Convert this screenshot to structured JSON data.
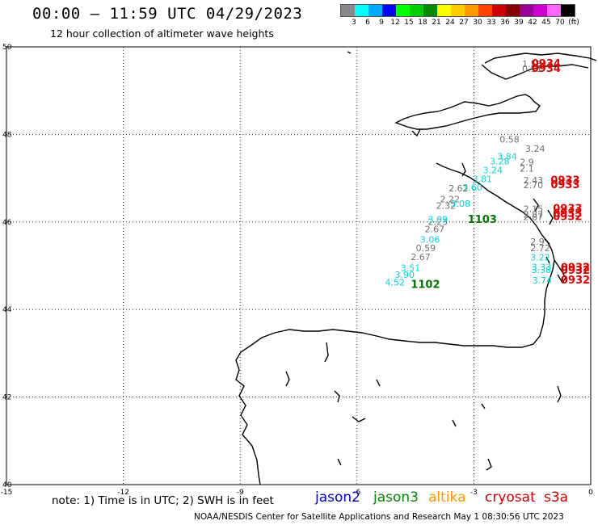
{
  "title": "00:00 – 11:59 UTC 04/29/2023",
  "subtitle": "12 hour collection of altimeter wave heights",
  "legend": {
    "unit": "(ft)",
    "colors": [
      "#888888",
      "#00ffff",
      "#00aaff",
      "#0000ff",
      "#00ff00",
      "#00cc00",
      "#008800",
      "#ffff00",
      "#ffcc00",
      "#ff9900",
      "#ff4400",
      "#cc0000",
      "#880000",
      "#990099",
      "#cc00cc",
      "#ff66ff",
      "#000000"
    ],
    "ticks": [
      "3",
      "6",
      "9",
      "12",
      "15",
      "18",
      "21",
      "24",
      "27",
      "30",
      "33",
      "36",
      "39",
      "42",
      "45",
      "70",
      "(ft)"
    ]
  },
  "axes": {
    "lon_ticks": [
      "-15",
      "-12",
      "-9",
      "-6",
      "-3",
      "0"
    ],
    "lat_ticks": [
      "50",
      "48",
      "46",
      "44",
      "42",
      "40"
    ]
  },
  "colors": {
    "gray": "#707070",
    "cyan": "#00d8d8",
    "red": "#dd0000",
    "green": "#007700"
  },
  "track_labels": [
    {
      "lon": -1.76,
      "lat": 49.54,
      "text": "1.55",
      "color": "gray"
    },
    {
      "lon": -1.76,
      "lat": 49.43,
      "text": "0.51",
      "color": "gray"
    },
    {
      "lon": -2.34,
      "lat": 47.81,
      "text": "0.58",
      "color": "gray"
    },
    {
      "lon": -1.68,
      "lat": 47.6,
      "text": "3.24",
      "color": "gray"
    },
    {
      "lon": -1.82,
      "lat": 47.3,
      "text": "2.9",
      "color": "gray"
    },
    {
      "lon": -1.82,
      "lat": 47.15,
      "text": "2.1",
      "color": "gray"
    },
    {
      "lon": -1.73,
      "lat": 46.88,
      "text": "2.43",
      "color": "gray"
    },
    {
      "lon": -1.73,
      "lat": 46.77,
      "text": "2.70",
      "color": "gray"
    },
    {
      "lon": -3.65,
      "lat": 46.7,
      "text": "2.62",
      "color": "gray"
    },
    {
      "lon": -3.87,
      "lat": 46.45,
      "text": "2.22",
      "color": "gray"
    },
    {
      "lon": -3.97,
      "lat": 46.3,
      "text": "2.32",
      "color": "gray"
    },
    {
      "lon": -4.18,
      "lat": 45.93,
      "text": "2.23",
      "color": "gray"
    },
    {
      "lon": -4.26,
      "lat": 45.77,
      "text": "2.67",
      "color": "gray"
    },
    {
      "lon": -4.49,
      "lat": 45.33,
      "text": "0.59",
      "color": "gray"
    },
    {
      "lon": -4.62,
      "lat": 45.13,
      "text": "2.67",
      "color": "gray"
    },
    {
      "lon": -1.73,
      "lat": 46.23,
      "text": "2.15",
      "color": "gray"
    },
    {
      "lon": -1.73,
      "lat": 46.1,
      "text": "2.87",
      "color": "gray"
    },
    {
      "lon": -1.73,
      "lat": 46.04,
      "text": "2.87",
      "color": "gray"
    },
    {
      "lon": -1.55,
      "lat": 45.48,
      "text": "2.9",
      "color": "gray"
    },
    {
      "lon": -1.55,
      "lat": 45.33,
      "text": "2.72",
      "color": "gray"
    },
    {
      "lon": -2.4,
      "lat": 47.43,
      "text": "3.84",
      "color": "cyan"
    },
    {
      "lon": -2.59,
      "lat": 47.32,
      "text": "3.28",
      "color": "cyan"
    },
    {
      "lon": -2.77,
      "lat": 47.11,
      "text": "3.24",
      "color": "cyan"
    },
    {
      "lon": -3.04,
      "lat": 46.91,
      "text": "3.81",
      "color": "cyan"
    },
    {
      "lon": -3.29,
      "lat": 46.72,
      "text": "3.60",
      "color": "cyan"
    },
    {
      "lon": -3.6,
      "lat": 46.35,
      "text": "3.08",
      "color": "cyan"
    },
    {
      "lon": -4.18,
      "lat": 45.99,
      "text": "3.09",
      "color": "cyan"
    },
    {
      "lon": -4.38,
      "lat": 45.53,
      "text": "3.06",
      "color": "cyan"
    },
    {
      "lon": -4.88,
      "lat": 44.88,
      "text": "3.51",
      "color": "cyan"
    },
    {
      "lon": -5.03,
      "lat": 44.72,
      "text": "3.90",
      "color": "cyan"
    },
    {
      "lon": -5.28,
      "lat": 44.55,
      "text": "4.52",
      "color": "cyan"
    },
    {
      "lon": -1.55,
      "lat": 45.12,
      "text": "3.22",
      "color": "cyan"
    },
    {
      "lon": -1.52,
      "lat": 44.9,
      "text": "3.33",
      "color": "cyan"
    },
    {
      "lon": -1.52,
      "lat": 44.83,
      "text": "3.38",
      "color": "cyan"
    },
    {
      "lon": -1.5,
      "lat": 44.59,
      "text": "3.74",
      "color": "cyan"
    },
    {
      "lon": -1.52,
      "lat": 49.54,
      "text": "0934",
      "color": "red"
    },
    {
      "lon": -1.52,
      "lat": 49.43,
      "text": "0934",
      "color": "red"
    },
    {
      "lon": -1.03,
      "lat": 46.87,
      "text": "0933",
      "color": "red"
    },
    {
      "lon": -1.03,
      "lat": 46.77,
      "text": "0933",
      "color": "red"
    },
    {
      "lon": -0.97,
      "lat": 46.23,
      "text": "0933",
      "color": "red"
    },
    {
      "lon": -0.97,
      "lat": 46.12,
      "text": "0933",
      "color": "red"
    },
    {
      "lon": -0.97,
      "lat": 46.04,
      "text": "0932",
      "color": "red"
    },
    {
      "lon": -0.77,
      "lat": 44.88,
      "text": "0932",
      "color": "red"
    },
    {
      "lon": -0.77,
      "lat": 44.82,
      "text": "0932",
      "color": "red"
    },
    {
      "lon": -0.77,
      "lat": 44.59,
      "text": "0932",
      "color": "red"
    },
    {
      "lon": -3.16,
      "lat": 45.98,
      "text": "1103",
      "color": "green"
    },
    {
      "lon": -4.62,
      "lat": 44.49,
      "text": "1102",
      "color": "green"
    }
  ],
  "note": "note: 1) Time is in UTC; 2) SWH is in feet",
  "missions": [
    {
      "text": "jason2",
      "color": "#0000cc"
    },
    {
      "text": "jason3",
      "color": "#008800"
    },
    {
      "text": "altika",
      "color": "#ff9900"
    },
    {
      "text": "cryosat",
      "color": "#cc0000"
    },
    {
      "text": "s3a",
      "color": "#cc0000"
    }
  ],
  "footer": "NOAA/NESDIS Center for Satellite Applications and Research    May  1 08:30:56 UTC 2023"
}
